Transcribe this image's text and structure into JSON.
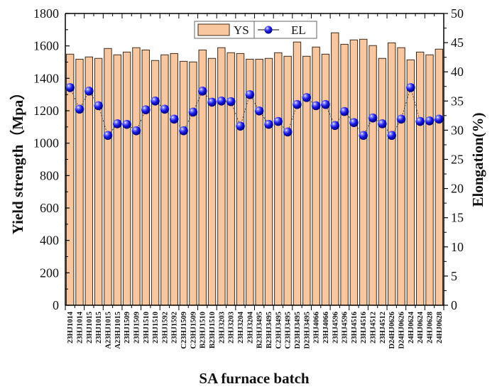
{
  "chart_data": {
    "type": "bar",
    "title": "",
    "xlabel": "SA furnace batch",
    "ylabel": "Yield strength（Mpa）",
    "y2label": "Elongation(%)",
    "ylim": [
      0,
      1800
    ],
    "y2lim": [
      0,
      50
    ],
    "yticks": [
      0,
      200,
      400,
      600,
      800,
      1000,
      1200,
      1400,
      1600,
      1800
    ],
    "y2ticks": [
      0,
      5,
      10,
      15,
      20,
      25,
      30,
      35,
      40,
      45,
      50
    ],
    "grid": false,
    "legend_position": "top-center",
    "categories": [
      "23HJ1014",
      "23HJ1014",
      "23HJ1015",
      "23HJ1015",
      "A23HJ1015",
      "A23HJ1015",
      "23HJ1509",
      "23HJ1509",
      "23HJ1510",
      "23HJ1510",
      "23HJ1592",
      "23HJ1592",
      "C23HJ1509",
      "C23HJ1509",
      "B23HJ1510",
      "B23HJ1510",
      "23HJ3203",
      "23HJ3203",
      "23HJ3204",
      "23HJ3204",
      "B23HJ3495",
      "B23HJ3495",
      "C23HJ3495",
      "C23HJ3495",
      "D23HJ3495",
      "D23HJ3495",
      "23HJ4066",
      "23HJ4066",
      "23HJ4596",
      "23HJ4596",
      "23HJ4516",
      "23HJ4516",
      "23HJ4512",
      "23HJ4512",
      "D24HJ0626",
      "D24HJ0626",
      "24HJ0624",
      "24HJ0624",
      "24HJ0628",
      "24HJ0628"
    ],
    "series": [
      {
        "name": "YS",
        "type": "bar",
        "axis": "left",
        "color": "#F9C79F",
        "edge_color": "#3a2a1a",
        "values": [
          1549,
          1518,
          1532,
          1523,
          1584,
          1545,
          1562,
          1589,
          1575,
          1510,
          1545,
          1553,
          1505,
          1501,
          1575,
          1523,
          1589,
          1558,
          1553,
          1518,
          1518,
          1523,
          1558,
          1536,
          1624,
          1536,
          1593,
          1549,
          1681,
          1610,
          1637,
          1641,
          1602,
          1523,
          1619,
          1589,
          1514,
          1562,
          1545,
          1580
        ]
      },
      {
        "name": "EL",
        "type": "line",
        "axis": "right",
        "color": "#1010E0",
        "line_style": "dashed",
        "marker": "sphere",
        "values": [
          37.3,
          33.6,
          36.7,
          34.2,
          29.1,
          31.1,
          31.0,
          29.9,
          33.5,
          35.0,
          33.6,
          31.9,
          29.9,
          33.1,
          36.7,
          34.8,
          35.0,
          34.9,
          30.7,
          36.1,
          33.3,
          31.0,
          31.5,
          29.7,
          34.4,
          35.6,
          34.2,
          34.4,
          30.8,
          33.2,
          31.3,
          29.1,
          32.1,
          31.1,
          29.1,
          31.9,
          37.3,
          31.5,
          31.6,
          31.9
        ]
      }
    ]
  },
  "legend": {
    "ys_label": "YS",
    "el_label": "EL"
  },
  "axes": {
    "xlabel": "SA furnace batch",
    "ylabel": "Yield strength（Mpa）",
    "y2label": "Elongation(%)"
  }
}
